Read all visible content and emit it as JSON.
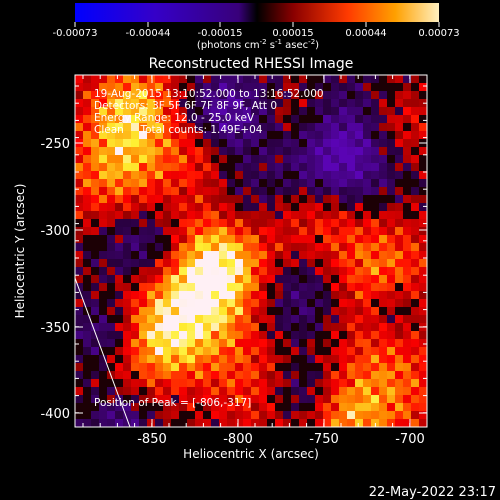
{
  "colorbar": {
    "tick_labels": [
      "-0.00073",
      "-0.00044",
      "-0.00015",
      "0.00015",
      "0.00044",
      "0.00073"
    ],
    "units_prefix": "(photons cm",
    "units_exp1": "-2",
    "units_mid": " s",
    "units_exp2": "-1",
    "units_mid2": " asec",
    "units_exp3": "-2",
    "units_suffix": ")"
  },
  "plot": {
    "title": "Reconstructed RHESSI Image",
    "xlabel": "Heliocentric X (arcsec)",
    "ylabel": "Heliocentric Y (arcsec)",
    "x_ticks": [
      "-850",
      "-800",
      "-750",
      "-700"
    ],
    "y_ticks": [
      "-250",
      "-300",
      "-350",
      "-400"
    ],
    "info_lines": [
      "19-Aug-2015 13:10:52.000 to 13:16:52.000",
      "Detectors: 3F 5F 6F 7F 8F 9F, Att 0",
      "Energy Range: 12.0 - 25.0 keV",
      "Clean     Total counts: 1.49E+04"
    ],
    "peak_label": "Position of Peak = [-806,-317]"
  },
  "timestamp": "22-May-2022 23:17"
}
